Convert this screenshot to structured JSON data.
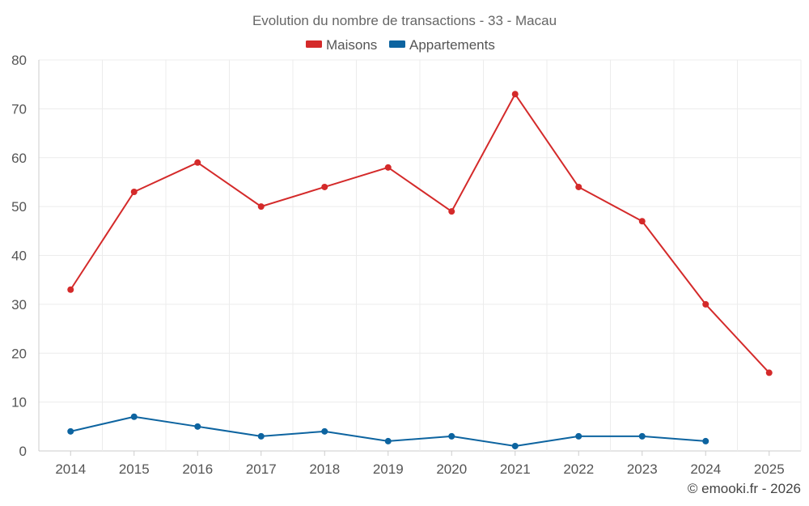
{
  "chart_data": {
    "type": "line",
    "title": "Evolution du nombre de transactions - 33 - Macau",
    "categories": [
      "2014",
      "2015",
      "2016",
      "2017",
      "2018",
      "2019",
      "2020",
      "2021",
      "2022",
      "2023",
      "2024",
      "2025"
    ],
    "ylim": [
      0,
      80
    ],
    "yticks": [
      0,
      10,
      20,
      30,
      40,
      50,
      60,
      70,
      80
    ],
    "grid": true,
    "legend_position": "top-center",
    "series": [
      {
        "name": "Maisons",
        "color": "#d42a2a",
        "values": [
          33,
          53,
          59,
          50,
          54,
          58,
          49,
          73,
          54,
          47,
          30,
          16
        ]
      },
      {
        "name": "Appartements",
        "color": "#0d64a0",
        "values": [
          4,
          7,
          5,
          3,
          4,
          2,
          3,
          1,
          3,
          3,
          2,
          null
        ]
      }
    ]
  },
  "credit": "© emooki.fr - 2026"
}
